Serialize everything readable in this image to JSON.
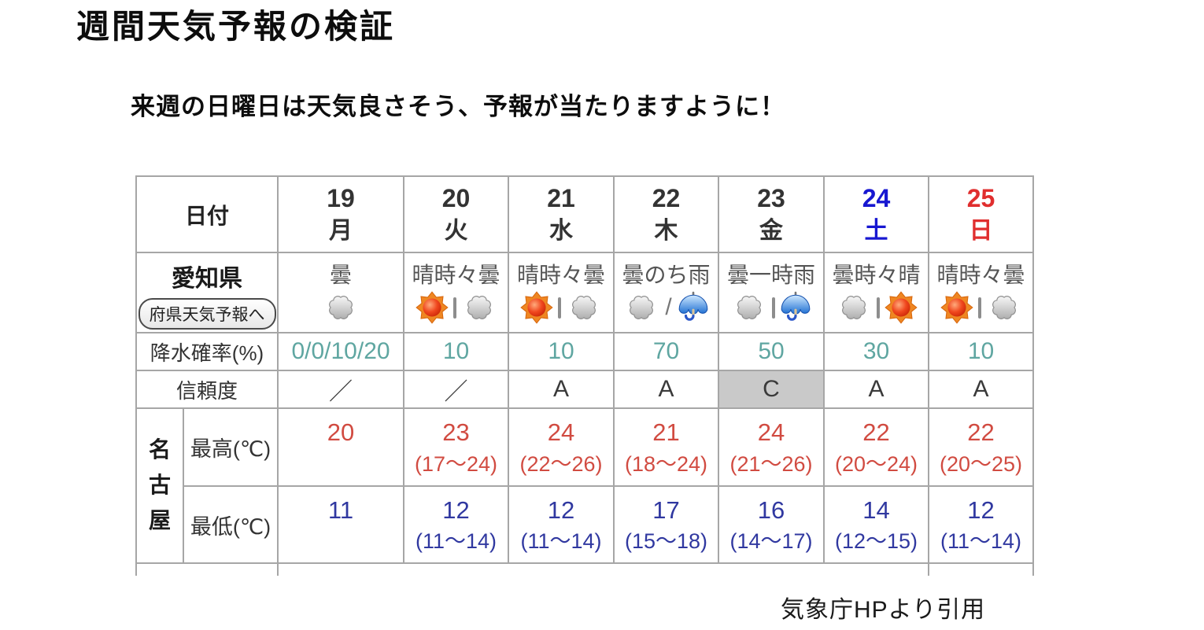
{
  "page": {
    "title": "週間天気予報の検証",
    "subtitle": "来週の日曜日は天気良さそう、予報が当たりますように！",
    "credit": "気象庁HPより引用"
  },
  "table": {
    "row_labels": {
      "date": "日付",
      "prefecture": "愛知県",
      "prefecture_button": "府県天気予報へ",
      "precipitation": "降水確率(%)",
      "reliability": "信頼度",
      "city": "名古屋",
      "max_temp": "最高(℃)",
      "min_temp": "最低(℃)"
    },
    "days": [
      {
        "date": "19",
        "weekday": "月",
        "color": "#333333",
        "weather": "曇",
        "icons": [
          "cloud"
        ],
        "separator": "",
        "precip": "0/0/10/20",
        "reliability": "／",
        "reliability_bg": "",
        "max": "20",
        "max_range": "",
        "min": "11",
        "min_range": ""
      },
      {
        "date": "20",
        "weekday": "火",
        "color": "#333333",
        "weather": "晴時々曇",
        "icons": [
          "sun",
          "cloud"
        ],
        "separator": "|",
        "precip": "10",
        "reliability": "／",
        "reliability_bg": "",
        "max": "23",
        "max_range": "(17〜24)",
        "min": "12",
        "min_range": "(11〜14)"
      },
      {
        "date": "21",
        "weekday": "水",
        "color": "#333333",
        "weather": "晴時々曇",
        "icons": [
          "sun",
          "cloud"
        ],
        "separator": "|",
        "precip": "10",
        "reliability": "A",
        "reliability_bg": "",
        "max": "24",
        "max_range": "(22〜26)",
        "min": "12",
        "min_range": "(11〜14)"
      },
      {
        "date": "22",
        "weekday": "木",
        "color": "#333333",
        "weather": "曇のち雨",
        "icons": [
          "cloud",
          "umbrella"
        ],
        "separator": "/",
        "precip": "70",
        "reliability": "A",
        "reliability_bg": "",
        "max": "21",
        "max_range": "(18〜24)",
        "min": "17",
        "min_range": "(15〜18)"
      },
      {
        "date": "23",
        "weekday": "金",
        "color": "#333333",
        "weather": "曇一時雨",
        "icons": [
          "cloud",
          "umbrella"
        ],
        "separator": "|",
        "precip": "50",
        "reliability": "C",
        "reliability_bg": "#c9c9c9",
        "max": "24",
        "max_range": "(21〜26)",
        "min": "16",
        "min_range": "(14〜17)"
      },
      {
        "date": "24",
        "weekday": "土",
        "color": "#1717d1",
        "weather": "曇時々晴",
        "icons": [
          "cloud",
          "sun"
        ],
        "separator": "|",
        "precip": "30",
        "reliability": "A",
        "reliability_bg": "",
        "max": "22",
        "max_range": "(20〜24)",
        "min": "14",
        "min_range": "(12〜15)"
      },
      {
        "date": "25",
        "weekday": "日",
        "color": "#e02e2e",
        "weather": "晴時々曇",
        "icons": [
          "sun",
          "cloud"
        ],
        "separator": "|",
        "precip": "10",
        "reliability": "A",
        "reliability_bg": "",
        "max": "22",
        "max_range": "(20〜25)",
        "min": "12",
        "min_range": "(11〜14)"
      }
    ],
    "colors": {
      "precip_teal": "#5fa6a1",
      "max_temp_red": "#d14b41",
      "min_temp_blue": "#3038a0",
      "saturday_blue": "#1717d1",
      "sunday_red": "#e02e2e",
      "reliability_c_background": "#c9c9c9",
      "grid_line": "#a6a6a6"
    }
  }
}
